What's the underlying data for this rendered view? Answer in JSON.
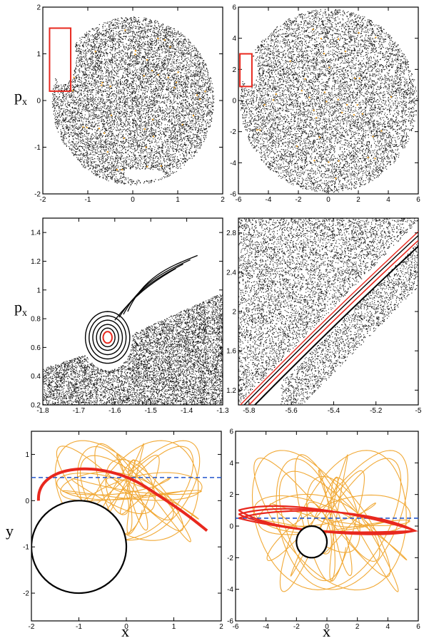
{
  "colors": {
    "chaos": "#111111",
    "orange": "#f0a020",
    "red": "#e8281e",
    "blue_dash": "#2255cc",
    "disk": "#000000"
  },
  "chart_data": [
    {
      "id": "p1",
      "type": "scatter",
      "xlim": [
        -2,
        2
      ],
      "ylim": [
        -2,
        2
      ],
      "xticks": [
        "-2",
        "-1",
        "0",
        "1",
        "2"
      ],
      "yticks": [
        "-2",
        "-1",
        "0",
        "1",
        "2"
      ],
      "xlabel": "",
      "ylabel": "px",
      "boundary_radius": 1.8,
      "highlight_box": {
        "x": [
          -1.85,
          -1.38
        ],
        "y": [
          0.2,
          1.55
        ]
      }
    },
    {
      "id": "p2",
      "type": "scatter",
      "xlim": [
        -6,
        6
      ],
      "ylim": [
        -6,
        6
      ],
      "xticks": [
        "-6",
        "-4",
        "-2",
        "0",
        "2",
        "4",
        "6"
      ],
      "yticks": [
        "-6",
        "-4",
        "-2",
        "0",
        "2",
        "4",
        "6"
      ],
      "xlabel": "",
      "ylabel": "",
      "boundary_radius": 5.9,
      "highlight_box": {
        "x": [
          -5.9,
          -5.1
        ],
        "y": [
          0.9,
          3.0
        ]
      }
    },
    {
      "id": "p3",
      "type": "scatter",
      "xlim": [
        -1.8,
        -1.3
      ],
      "ylim": [
        0.2,
        1.5
      ],
      "xticks": [
        "-1.8",
        "-1.7",
        "-1.6",
        "-1.5",
        "-1.4",
        "-1.3"
      ],
      "yticks": [
        "0.2",
        "0.4",
        "0.6",
        "0.8",
        "1",
        "1.2",
        "1.4"
      ],
      "xlabel": "",
      "ylabel": "px",
      "island_center": [
        -1.62,
        0.67
      ]
    },
    {
      "id": "p4",
      "type": "scatter",
      "xlim": [
        -5.85,
        -5.0
      ],
      "ylim": [
        1.05,
        2.95
      ],
      "xticks": [
        "-5.8",
        "-5.6",
        "-5.4",
        "-5.2",
        "-5"
      ],
      "yticks": [
        "1.2",
        "1.6",
        "2",
        "2.4",
        "2.8"
      ],
      "xlabel": "",
      "ylabel": ""
    },
    {
      "id": "p5",
      "type": "line",
      "xlim": [
        -2,
        2
      ],
      "ylim": [
        -2.6,
        1.5
      ],
      "xticks": [
        "-2",
        "-1",
        "0",
        "1",
        "2"
      ],
      "yticks": [
        "-2",
        "-1",
        "0",
        "1"
      ],
      "xlabel": "x",
      "ylabel": "y",
      "dashed_y": 0.5,
      "disk": {
        "cx": -1,
        "cy": -1,
        "r": 1
      }
    },
    {
      "id": "p6",
      "type": "line",
      "xlim": [
        -6,
        6
      ],
      "ylim": [
        -6,
        6
      ],
      "xticks": [
        "-6",
        "-4",
        "-2",
        "0",
        "2",
        "4",
        "6"
      ],
      "yticks": [
        "-6",
        "-4",
        "-2",
        "0",
        "2",
        "4",
        "6"
      ],
      "xlabel": "x",
      "ylabel": "",
      "dashed_y": 0.5,
      "disk": {
        "cx": -1,
        "cy": -1,
        "r": 1
      }
    }
  ]
}
